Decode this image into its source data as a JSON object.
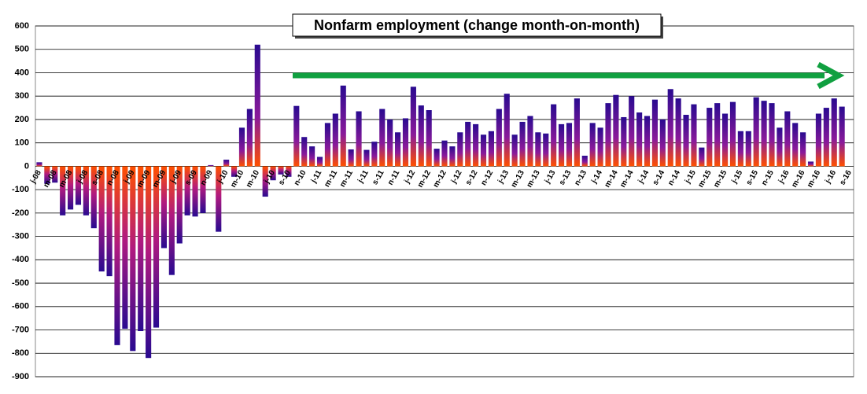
{
  "chart_data": {
    "type": "bar",
    "title": "Nonfarm employment (change month-on-month)",
    "categories": [
      "j-08",
      null,
      "m-08",
      null,
      "m-08",
      null,
      "j-08",
      null,
      "s-08",
      null,
      "n-08",
      null,
      "j-09",
      null,
      "m-09",
      null,
      "m-09",
      null,
      "j-09",
      null,
      "s-09",
      null,
      "n-09",
      null,
      "j-10",
      null,
      "m-10",
      null,
      "m-10",
      null,
      "j-10",
      null,
      "s-10",
      null,
      "n-10",
      null,
      "j-11",
      null,
      "m-11",
      null,
      "m-11",
      null,
      "j-11",
      null,
      "s-11",
      null,
      "n-11",
      null,
      "j-12",
      null,
      "m-12",
      null,
      "m-12",
      null,
      "j-12",
      null,
      "s-12",
      null,
      "n-12",
      null,
      "j-13",
      null,
      "m-13",
      null,
      "m-13",
      null,
      "j-13",
      null,
      "s-13",
      null,
      "n-13",
      null,
      "j-14",
      null,
      "m-14",
      null,
      "m-14",
      null,
      "j-14",
      null,
      "s-14",
      null,
      "n-14",
      null,
      "j-15",
      null,
      "m-15",
      null,
      "m-15",
      null,
      "j-15",
      null,
      "s-15",
      null,
      "n-15",
      null,
      "j-16",
      null,
      "m-16",
      null,
      "m-16",
      null,
      "j-16",
      null,
      "s-16"
    ],
    "values": [
      17,
      -75,
      -70,
      -210,
      -185,
      -165,
      -210,
      -265,
      -450,
      -470,
      -765,
      -695,
      -790,
      -705,
      -820,
      -690,
      -350,
      -465,
      -330,
      -210,
      -215,
      -200,
      5,
      -280,
      28,
      -45,
      165,
      245,
      520,
      -130,
      -60,
      -35,
      -45,
      258,
      125,
      85,
      40,
      185,
      225,
      345,
      72,
      235,
      70,
      105,
      245,
      200,
      145,
      205,
      340,
      260,
      240,
      75,
      110,
      85,
      145,
      190,
      180,
      135,
      150,
      245,
      310,
      135,
      190,
      215,
      145,
      140,
      265,
      180,
      185,
      290,
      45,
      185,
      165,
      270,
      305,
      210,
      300,
      230,
      215,
      285,
      200,
      330,
      290,
      220,
      265,
      80,
      250,
      270,
      225,
      275,
      150,
      150,
      295,
      280,
      270,
      165,
      235,
      185,
      145,
      20,
      225,
      250,
      290,
      255,
      null
    ],
    "ylim": [
      -900,
      600
    ],
    "yticks": [
      -900,
      -800,
      -700,
      -600,
      -500,
      -400,
      -300,
      -200,
      -100,
      0,
      100,
      200,
      300,
      400,
      500,
      600
    ],
    "grid": true
  }
}
